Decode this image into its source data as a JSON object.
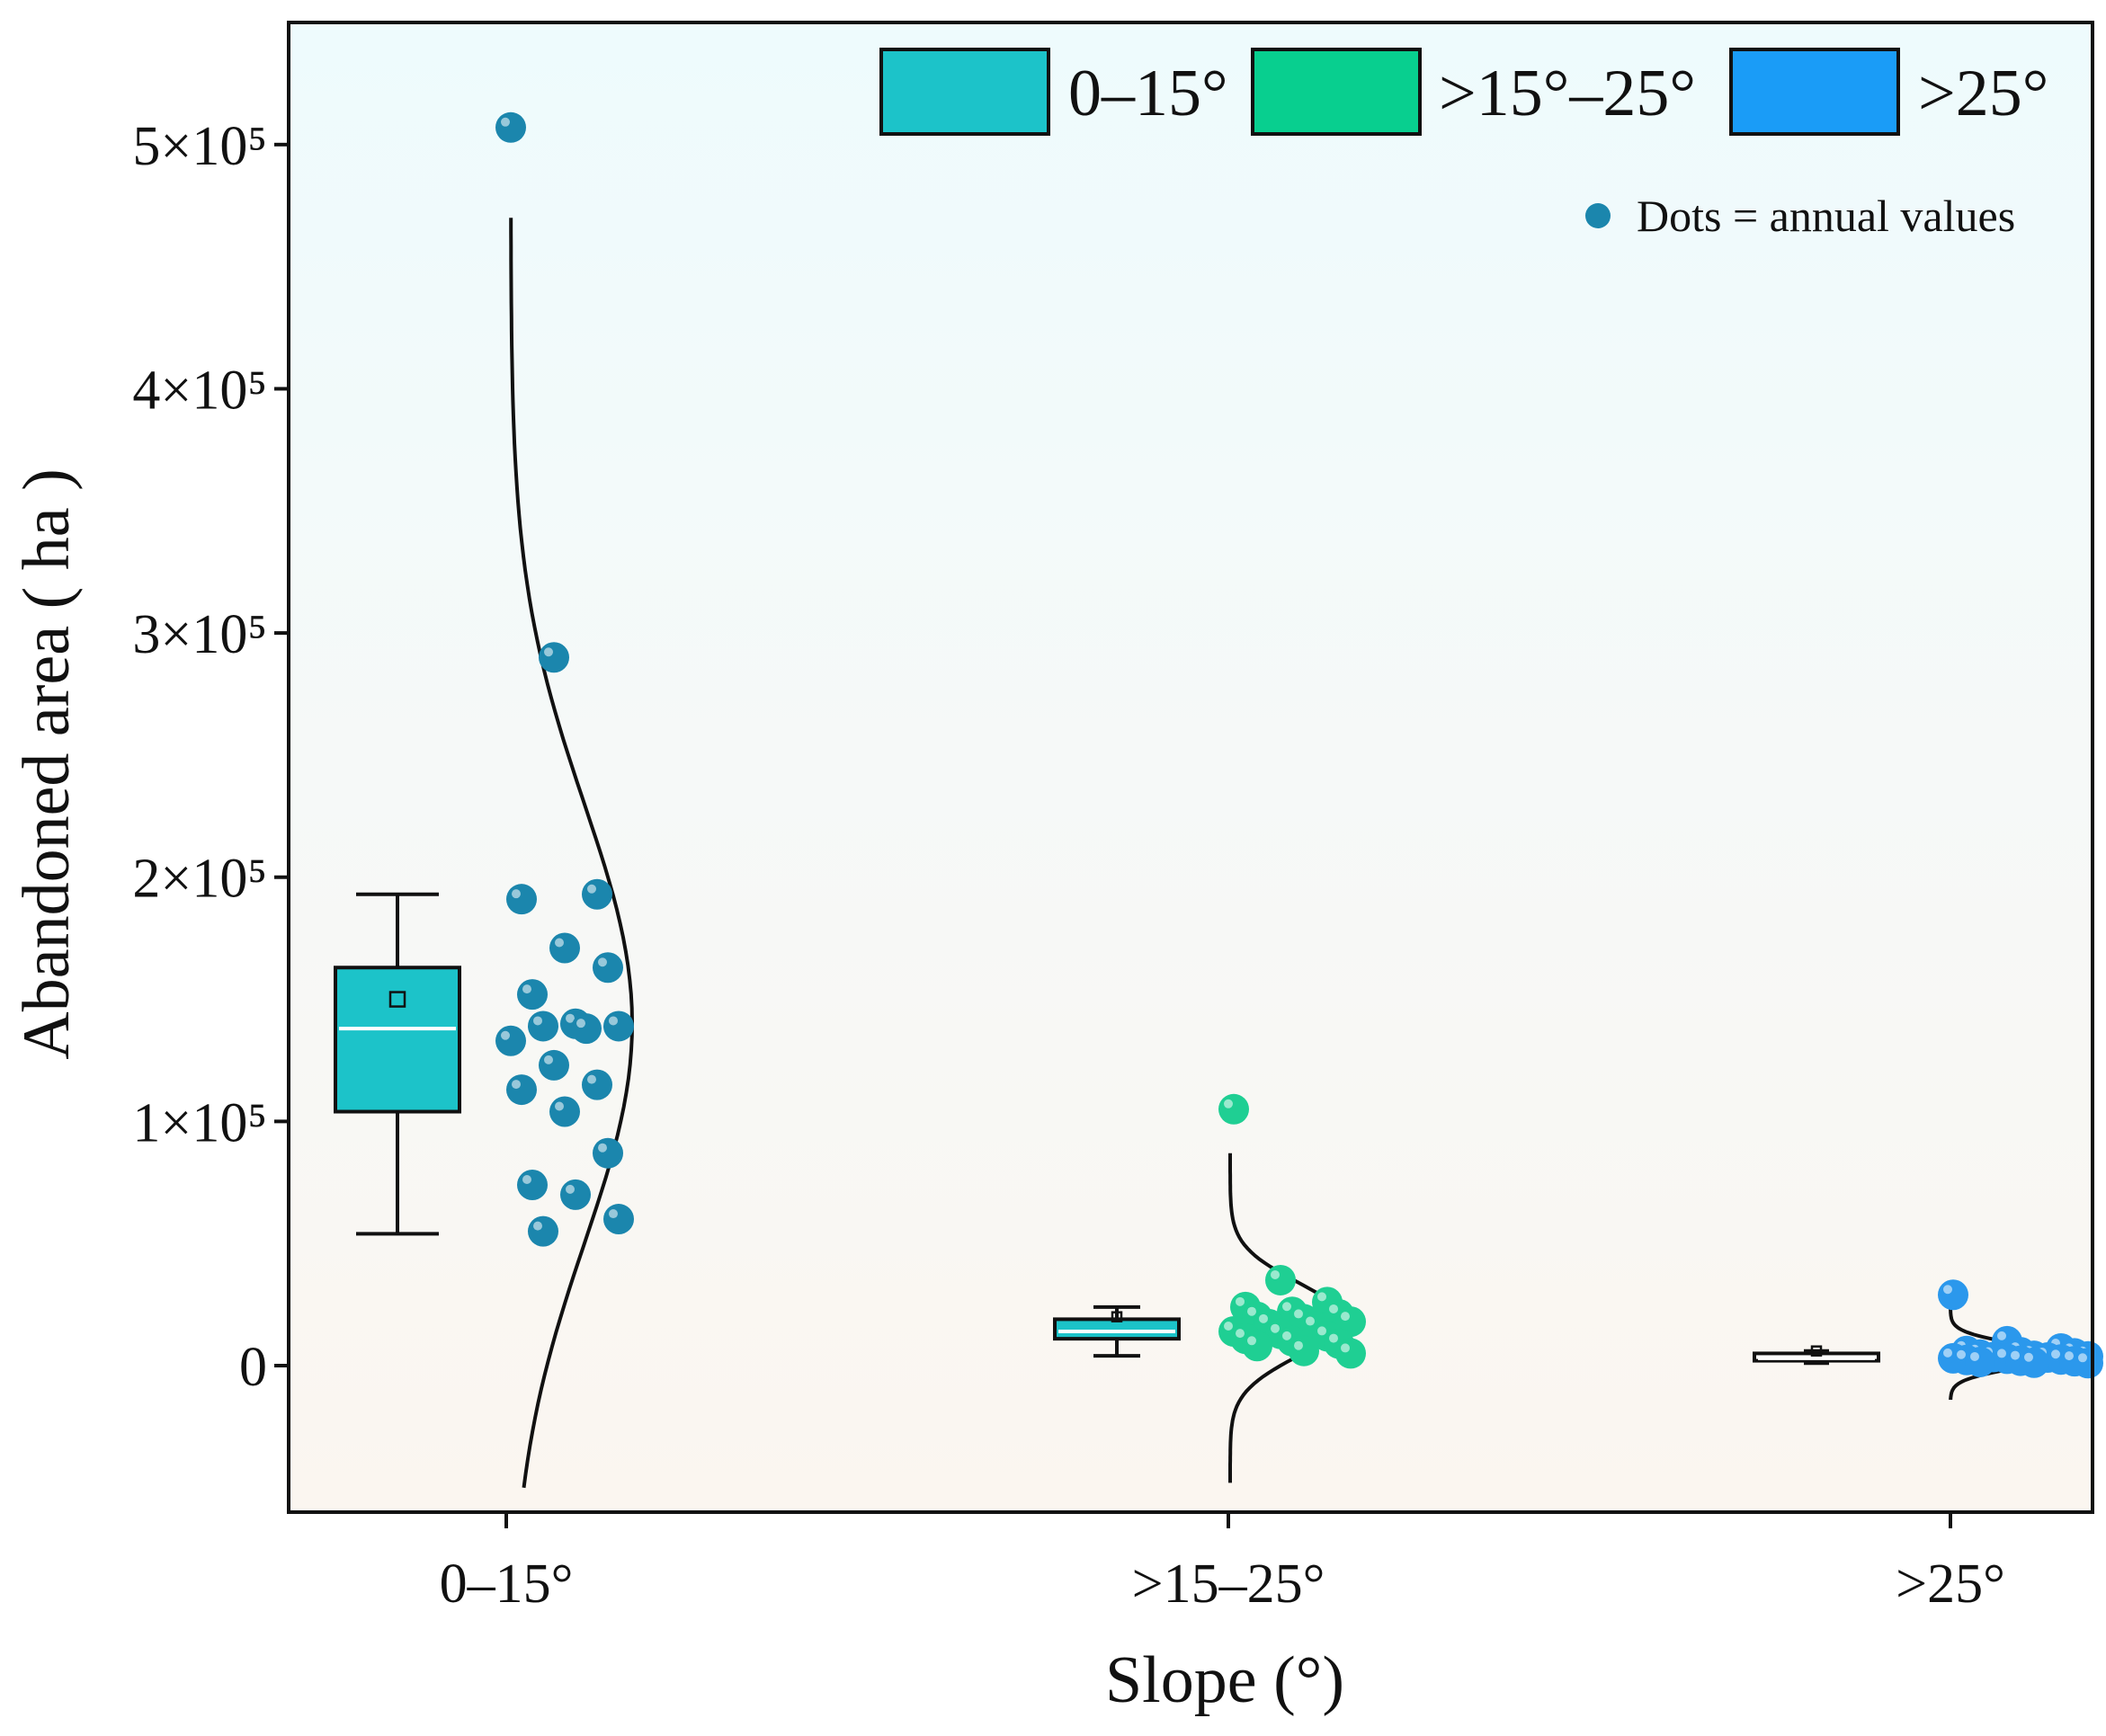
{
  "chart_data": {
    "type": "box-scatter-density",
    "xlabel": "Slope (°)",
    "ylabel": "Abandoned area ( ha )",
    "categories": [
      "0–15°",
      ">15–25°",
      ">25°"
    ],
    "ylim": [
      -60000,
      550000
    ],
    "y_ticks": [
      {
        "value": 0,
        "label": "0"
      },
      {
        "value": 100000,
        "label": "1×10⁵"
      },
      {
        "value": 200000,
        "label": "2×10⁵"
      },
      {
        "value": 300000,
        "label": "3×10⁵"
      },
      {
        "value": 400000,
        "label": "4×10⁵"
      },
      {
        "value": 500000,
        "label": "5×10⁵"
      }
    ],
    "legend": {
      "placement": "top-right",
      "entries": [
        {
          "label": "0–15°",
          "color": "#1cc3c9"
        },
        {
          "label": ">15°–25°",
          "color": "#08cf8f"
        },
        {
          "label": ">25°",
          "color": "#1a9cf7"
        }
      ],
      "note": "Dots = annual values"
    },
    "grid": false,
    "series": [
      {
        "category": "0–15°",
        "box_color": "#1cc3c9",
        "dot_color": "#1b86ad",
        "box": {
          "min": 54000,
          "q1": 104000,
          "median": 138000,
          "q3": 163000,
          "max": 193000,
          "mean": 150000
        },
        "points": [
          507000,
          290000,
          193000,
          191000,
          171000,
          163000,
          152000,
          140000,
          139000,
          139000,
          138000,
          133000,
          123000,
          115000,
          113000,
          104000,
          87000,
          74000,
          70000,
          60000,
          55000
        ],
        "density": {
          "mean": 140000,
          "sd": 90000,
          "range": [
            -50000,
            470000
          ]
        }
      },
      {
        "category": ">15–25°",
        "box_color": "#1cc3c9",
        "dot_color": "#1fcf93",
        "box": {
          "min": 4000,
          "q1": 11000,
          "median": 14000,
          "q3": 19000,
          "max": 24000,
          "mean": 20000
        },
        "points": [
          105000,
          35000,
          26000,
          24000,
          22000,
          21000,
          20000,
          19000,
          18000,
          17000,
          16000,
          14000,
          13000,
          12000,
          11000,
          10000,
          9000,
          8000,
          6000,
          5000
        ],
        "density": {
          "mean": 19000,
          "sd": 15000,
          "range": [
            -48000,
            87000
          ]
        }
      },
      {
        "category": ">25°",
        "box_color": "#ffffff",
        "dot_color": "#2b98ec",
        "box": {
          "min": 1000,
          "q1": 2000,
          "median": 3000,
          "q3": 5000,
          "max": 6000,
          "mean": 6000
        },
        "points": [
          29000,
          10000,
          7000,
          6000,
          5500,
          5000,
          4500,
          4000,
          3800,
          3500,
          3300,
          3000,
          2800,
          2500,
          2300,
          2000,
          1800,
          1500,
          1200,
          1000
        ],
        "density": {
          "mean": 4000,
          "sd": 5000,
          "range": [
            -14000,
            23000
          ]
        }
      }
    ]
  }
}
